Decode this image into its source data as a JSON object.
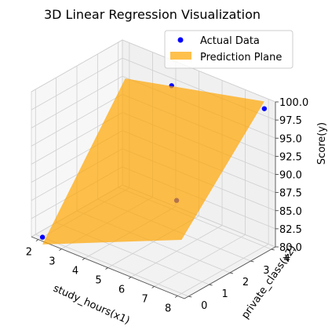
{
  "chart_data": {
    "type": "scatter",
    "title": "3D Linear Regression Visualization",
    "xlabel": "study_hours(x1)",
    "ylabel": "private_class(x2)",
    "zlabel": "Score(y)",
    "x_ticks": [
      "2",
      "3",
      "4",
      "5",
      "6",
      "7",
      "8"
    ],
    "y_ticks": [
      "0",
      "1",
      "2",
      "3",
      "4"
    ],
    "z_ticks": [
      "80.0",
      "82.5",
      "85.0",
      "87.5",
      "90.0",
      "92.5",
      "95.0",
      "97.5",
      "100.0"
    ],
    "xlim": [
      1.7,
      8.3
    ],
    "ylim": [
      -0.2,
      4.2
    ],
    "zlim": [
      80,
      100
    ],
    "grid": true,
    "legend_position": "top-right",
    "series": [
      {
        "name": "Actual Data",
        "marker": "scatter",
        "color": "#0000ff",
        "points": [
          {
            "x1": 2,
            "x2": 0,
            "y": 80
          },
          {
            "x1": 4,
            "x2": 4,
            "y": 97
          },
          {
            "x1": 6,
            "x2": 2,
            "y": 87
          },
          {
            "x1": 8,
            "x2": 4,
            "y": 99
          }
        ]
      },
      {
        "name": "Prediction Plane",
        "marker": "surface",
        "color": "#ffa500",
        "alpha": 0.7,
        "corners": [
          {
            "x1": 2,
            "x2": 0,
            "y": 79.0
          },
          {
            "x1": 8,
            "x2": 0,
            "y": 87.4
          },
          {
            "x1": 8,
            "x2": 4,
            "y": 100.0
          },
          {
            "x1": 2,
            "x2": 4,
            "y": 95.4
          }
        ]
      }
    ]
  }
}
